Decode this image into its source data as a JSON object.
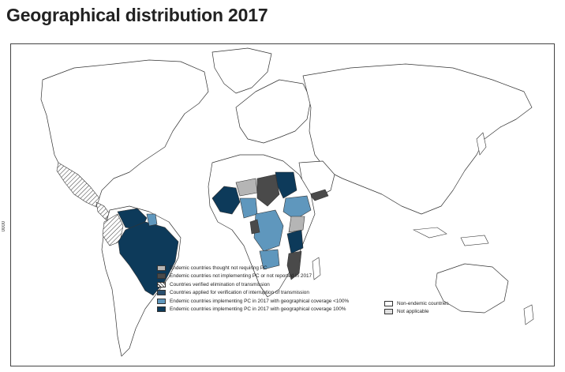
{
  "title": "Geographical distribution 2017",
  "legend": {
    "items": [
      {
        "label": "Endemic countries thought not requiring PC",
        "color": "#b5b5b5",
        "pattern": "solid"
      },
      {
        "label": "Endemic countries not implementing PC or not reported in 2017",
        "color": "#4a4a4a",
        "pattern": "solid"
      },
      {
        "label": "Countries verified elimination of transmission",
        "color": "#ffffff",
        "pattern": "hatch"
      },
      {
        "label": "Countries applied for verification of interruption of transmission",
        "color": "#2a4f6e",
        "pattern": "solid"
      },
      {
        "label": "Endemic countries implementing PC in 2017 with geographical coverage <100%",
        "color": "#5f97bd",
        "pattern": "solid"
      },
      {
        "label": "Endemic countries implementing PC in 2017 with geographical coverage 100%",
        "color": "#0d3a5a",
        "pattern": "solid"
      }
    ],
    "extra_items": [
      {
        "label": "Non-endemic countries",
        "color": "#ffffff"
      },
      {
        "label": "Not applicable",
        "color": "#e0e0e0"
      }
    ]
  },
  "inset_label": "0000"
}
